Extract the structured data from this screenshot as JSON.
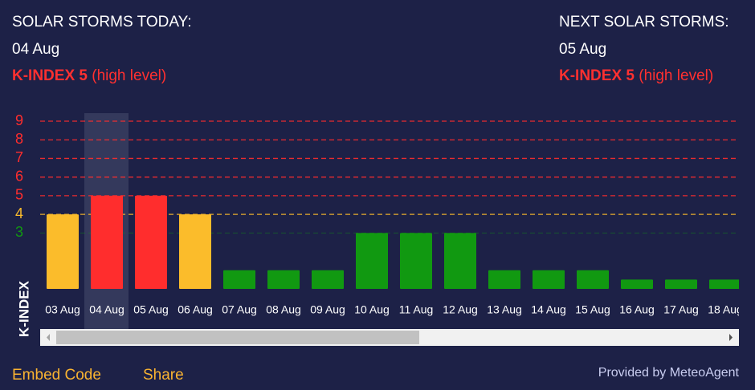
{
  "header": {
    "today_title": "SOLAR STORMS TODAY:",
    "today_date": "04 Aug",
    "today_index": "K-INDEX 5",
    "today_level": "(high level)",
    "next_title": "NEXT SOLAR STORMS:",
    "next_date": "05 Aug",
    "next_index": "K-INDEX 5",
    "next_level": "(high level)"
  },
  "chart_data": {
    "type": "bar",
    "y_label": "K-INDEX",
    "categories": [
      "03 Aug",
      "04 Aug",
      "05 Aug",
      "06 Aug",
      "07 Aug",
      "08 Aug",
      "09 Aug",
      "10 Aug",
      "11 Aug",
      "12 Aug",
      "13 Aug",
      "14 Aug",
      "15 Aug",
      "16 Aug",
      "17 Aug",
      "18 Aug"
    ],
    "values": [
      4,
      5,
      5,
      4,
      1,
      1,
      1,
      3,
      3,
      3,
      1,
      1,
      1,
      0.5,
      0.5,
      0.5
    ],
    "colors": [
      "#fbbc2b",
      "#ff2d2d",
      "#ff2d2d",
      "#fbbc2b",
      "#119911",
      "#119911",
      "#119911",
      "#119911",
      "#119911",
      "#119911",
      "#119911",
      "#119911",
      "#119911",
      "#119911",
      "#119911",
      "#119911"
    ],
    "highlight_category": "04 Aug",
    "ylim": [
      0,
      9
    ],
    "yticks": [
      3,
      4,
      5,
      6,
      7,
      8,
      9
    ],
    "ytick_colors": [
      "#119911",
      "#fbbc2b",
      "#ff2d2d",
      "#ff2d2d",
      "#ff2d2d",
      "#ff2d2d",
      "#ff2d2d"
    ],
    "grid": true
  },
  "footer": {
    "embed": "Embed Code",
    "share": "Share",
    "provider": "Provided by MeteoAgent"
  }
}
